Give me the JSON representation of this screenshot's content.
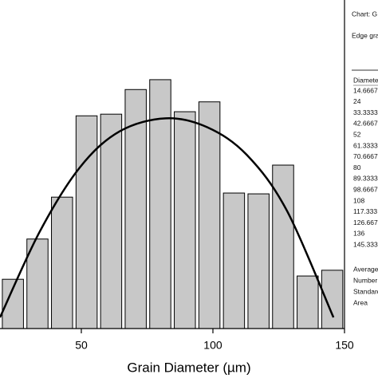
{
  "chart_data": {
    "type": "histogram",
    "x_label": "Grain Diameter (µm)",
    "bins": [
      19.3333,
      28.6667,
      38,
      47.3333,
      56.6667,
      66,
      75.3333,
      84.6667,
      94,
      103.3333,
      112.6667,
      122,
      131.3333,
      140.6667,
      150
    ],
    "values": [
      6,
      10.9,
      16,
      25.9,
      26.1,
      29.1,
      30.3,
      26.4,
      27.6,
      16.5,
      16.4,
      19.9,
      6.4,
      7.1
    ],
    "color": "#c8c8c8",
    "fit": {
      "color": "#000000",
      "x": [
        19.1,
        34.2,
        49.4,
        64.5,
        82.1,
        97.9,
        113,
        128.2,
        145.8
      ],
      "values": [
        1.36,
        11.8,
        19.6,
        24,
        25.6,
        24.5,
        21.1,
        14.3,
        1.36
      ]
    },
    "xlim": [
      19.1,
      150
    ],
    "xticks": [
      50,
      100,
      150
    ],
    "ylim": [
      0,
      40
    ]
  },
  "panel": {
    "chart": "Chart: G",
    "edge": "Edge gra",
    "header": "Diameter",
    "diameters": [
      "14.6667",
      "24",
      "33.3333",
      "42.6667",
      "52",
      "61.3333",
      "70.6667",
      "80",
      "89.3333",
      "98.6667",
      "108",
      "117.333",
      "126.667",
      "136",
      "145.333"
    ],
    "stats": [
      "Average",
      "Number",
      "Standard",
      "Area"
    ]
  }
}
